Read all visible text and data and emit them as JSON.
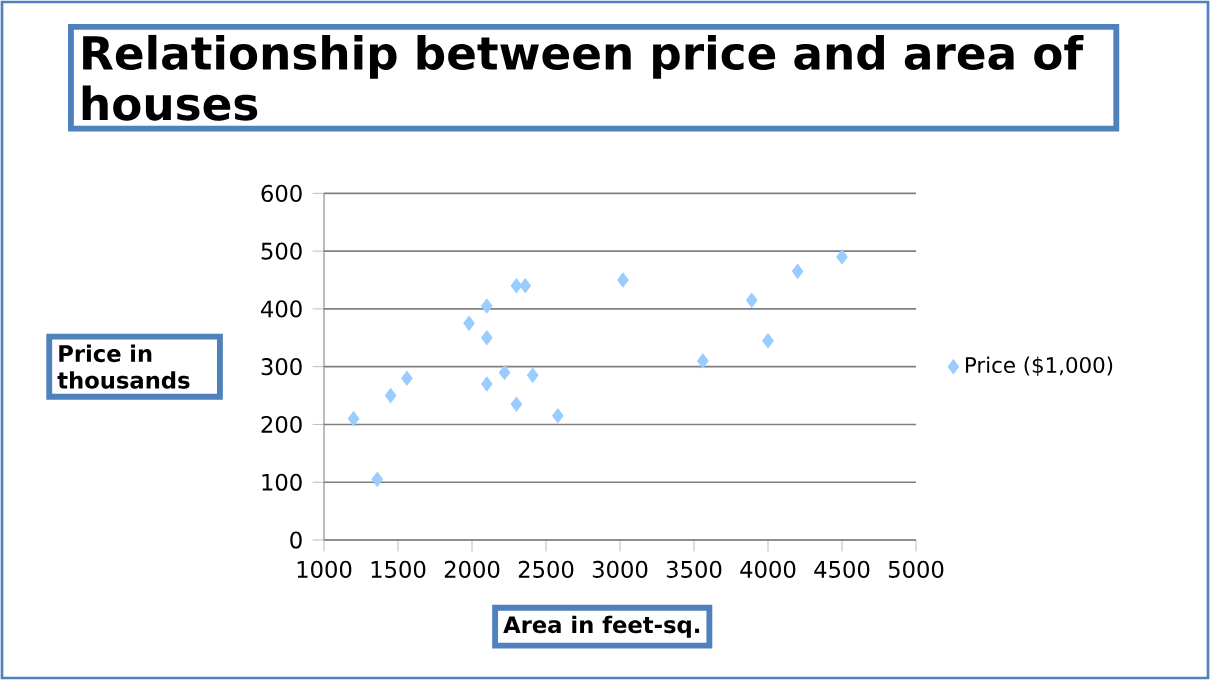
{
  "chart_data": {
    "type": "scatter",
    "title": "Relationship between price and area of houses",
    "xlabel": "Area in feet-sq.",
    "ylabel": "Price in thousands",
    "series": [
      {
        "name": "Price ($1,000)",
        "color": "#99ccff",
        "x": [
          1200,
          1360,
          1450,
          1560,
          1980,
          2100,
          2100,
          2100,
          2220,
          2300,
          2360,
          2300,
          2410,
          2580,
          3020,
          3560,
          3890,
          4000,
          4200,
          4500
        ],
        "values": [
          210,
          105,
          250,
          280,
          375,
          405,
          350,
          270,
          290,
          440,
          440,
          235,
          285,
          215,
          450,
          310,
          415,
          345,
          465,
          490
        ]
      }
    ],
    "xlim": [
      1000,
      5000
    ],
    "xticks": [
      1000,
      1500,
      2000,
      2500,
      3000,
      3500,
      4000,
      4500,
      5000
    ],
    "ylim": [
      0,
      600
    ],
    "yticks": [
      0,
      100,
      200,
      300,
      400,
      500,
      600
    ],
    "grid": "y",
    "legend": "right",
    "marker": "diamond"
  }
}
